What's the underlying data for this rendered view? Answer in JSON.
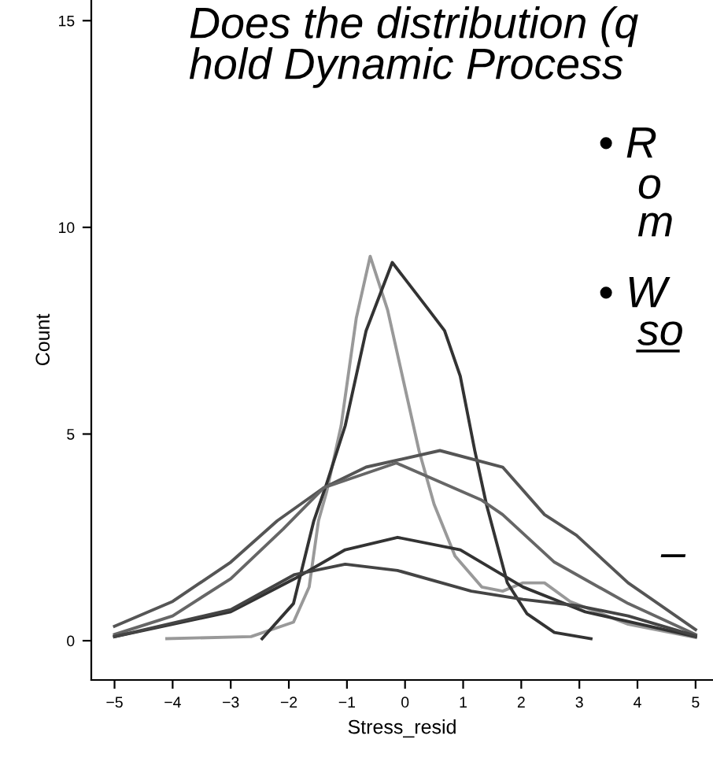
{
  "chart_data": {
    "type": "line",
    "xlabel": "Stress_resid",
    "ylabel": "Count",
    "xlim": [
      -5.4,
      5.3
    ],
    "ylim": [
      -0.95,
      15.5
    ],
    "xticks": [
      {
        "value": -5,
        "label": "−5"
      },
      {
        "value": -4,
        "label": "−4"
      },
      {
        "value": -3,
        "label": "−3"
      },
      {
        "value": -2,
        "label": "−2"
      },
      {
        "value": -1,
        "label": "−1"
      },
      0,
      1,
      2,
      3,
      4,
      5
    ],
    "yticks": [
      0,
      5,
      10,
      15
    ],
    "grid": false,
    "legend": false,
    "marker": "none",
    "line_style": "solid",
    "annotations": [
      "Does the distribution (q",
      "hold Dynamic Process",
      "• R",
      "o",
      "m",
      "• W",
      "so",
      "–"
    ],
    "series": [
      {
        "color": "#999999",
        "x": [
          -4.1,
          -2.65,
          -1.92,
          -1.65,
          -1.49,
          -1.35,
          -1.1,
          -0.84,
          -0.6,
          -0.3,
          -0.03,
          0.24,
          0.5,
          0.86,
          1.32,
          1.68,
          2.03,
          2.4,
          2.84,
          3.84,
          5.0
        ],
        "values": [
          0.05,
          0.1,
          0.45,
          1.3,
          2.9,
          3.6,
          5.2,
          7.8,
          9.3,
          8.0,
          6.3,
          4.6,
          3.3,
          2.05,
          1.3,
          1.2,
          1.4,
          1.4,
          0.95,
          0.4,
          0.08
        ]
      },
      {
        "color": "#333333",
        "x": [
          -2.46,
          -1.92,
          -1.57,
          -1.35,
          -1.03,
          -0.67,
          -0.22,
          0.41,
          0.68,
          0.95,
          1.2,
          1.4,
          1.76,
          2.1,
          2.57,
          3.2
        ],
        "values": [
          0.05,
          0.9,
          2.9,
          3.8,
          5.2,
          7.5,
          9.15,
          8.0,
          7.5,
          6.4,
          4.6,
          3.3,
          1.4,
          0.65,
          0.2,
          0.05
        ]
      },
      {
        "color": "#555555",
        "x": [
          -5,
          -4,
          -3,
          -2.2,
          -1.4,
          -0.67,
          0.6,
          1.68,
          2.4,
          2.95,
          3.84,
          5
        ],
        "values": [
          0.35,
          0.95,
          1.9,
          2.9,
          3.7,
          4.2,
          4.6,
          4.2,
          3.05,
          2.55,
          1.4,
          0.27
        ]
      },
      {
        "color": "#666666",
        "x": [
          -5,
          -4,
          -3,
          -2.1,
          -1.4,
          -0.15,
          1.32,
          1.68,
          2.57,
          3.84,
          5
        ],
        "values": [
          0.15,
          0.6,
          1.5,
          2.7,
          3.7,
          4.3,
          3.4,
          3.05,
          1.9,
          0.9,
          0.15
        ]
      },
      {
        "color": "#333333",
        "x": [
          -5,
          -3,
          -1.9,
          -1.03,
          -0.13,
          0.95,
          2.03,
          3.1,
          5
        ],
        "values": [
          0.1,
          0.7,
          1.5,
          2.2,
          2.5,
          2.2,
          1.3,
          0.7,
          0.1
        ]
      },
      {
        "color": "#444444",
        "x": [
          -5,
          -3,
          -1.9,
          -1.03,
          -0.13,
          1.14,
          2.03,
          2.95,
          3.84,
          5
        ],
        "values": [
          0.1,
          0.75,
          1.6,
          1.85,
          1.7,
          1.2,
          1.0,
          0.85,
          0.6,
          0.12
        ]
      }
    ]
  }
}
